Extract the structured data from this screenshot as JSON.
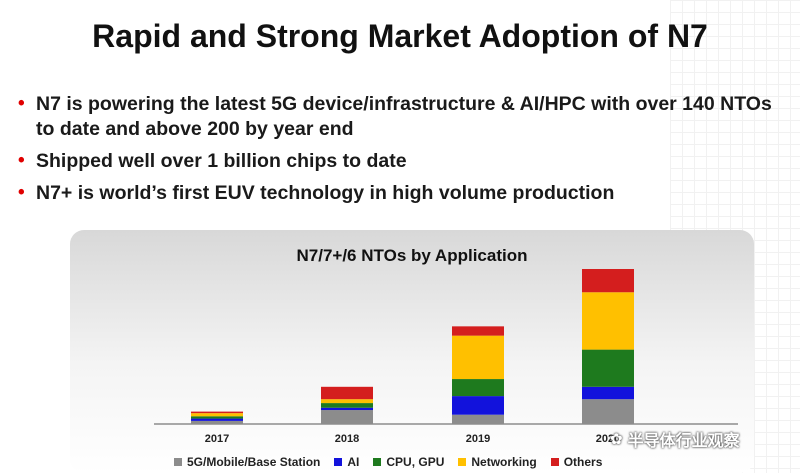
{
  "slide": {
    "title": "Rapid and Strong Market Adoption of N7",
    "bullets": [
      "N7 is powering the latest 5G device/infrastructure & AI/HPC with over 140 NTOs to date and above 200 by year end",
      "Shipped well over 1 billion chips to date",
      "N7+ is world’s first EUV technology in high volume production"
    ],
    "bullet_color": "#e00000"
  },
  "watermark": {
    "icon": "wechat-icon",
    "text": "半导体行业观察"
  },
  "chart_data": {
    "type": "bar",
    "stacked": true,
    "title": "N7/7+/6 NTOs by Application",
    "xlabel": "",
    "ylabel": "",
    "ylim": [
      0,
      100
    ],
    "grid": false,
    "legend_position": "bottom",
    "categories": [
      "2017",
      "2018",
      "2019",
      "2020"
    ],
    "series": [
      {
        "name": "5G/Mobile/Base Station",
        "color": "#8c8c8c",
        "values": [
          2,
          9,
          6,
          16
        ]
      },
      {
        "name": "AI",
        "color": "#1212dc",
        "values": [
          1.5,
          1.5,
          12,
          8
        ]
      },
      {
        "name": "CPU, GPU",
        "color": "#1e7a1e",
        "values": [
          1.5,
          3,
          11,
          24
        ]
      },
      {
        "name": "Networking",
        "color": "#ffc000",
        "values": [
          2,
          2.5,
          28,
          37
        ]
      },
      {
        "name": "Others",
        "color": "#d41e1e",
        "values": [
          1,
          8,
          6,
          15
        ]
      }
    ]
  }
}
